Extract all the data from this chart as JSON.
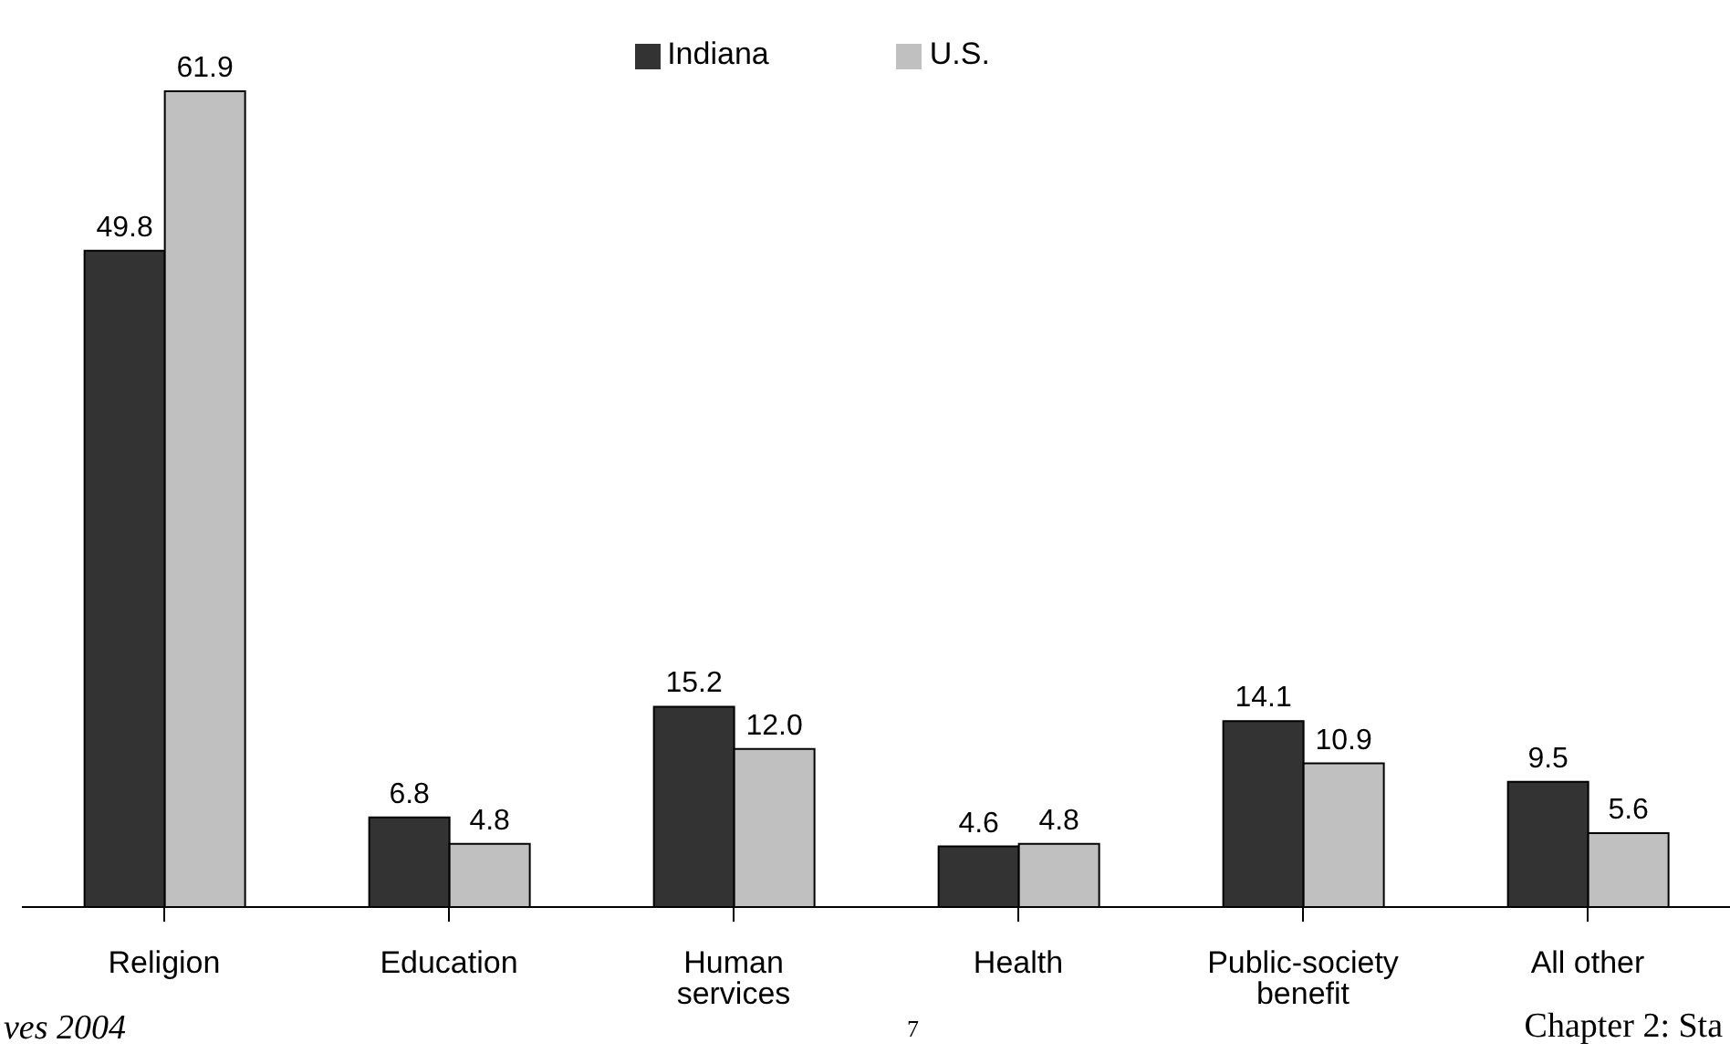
{
  "chart_data": {
    "type": "bar",
    "categories": [
      "Religion",
      "Education",
      "Human services",
      "Health",
      "Public-society benefit",
      "All other"
    ],
    "series": [
      {
        "name": "Indiana",
        "color": "#333333",
        "values": [
          49.8,
          6.8,
          15.2,
          4.6,
          14.1,
          9.5
        ],
        "value_labels": [
          "49.8",
          "6.8",
          "15.2",
          "4.6",
          "14.1",
          "9.5"
        ]
      },
      {
        "name": "U.S.",
        "color": "#c0c0c0",
        "values": [
          61.9,
          4.8,
          12.0,
          4.8,
          10.9,
          5.6
        ],
        "value_labels": [
          "61.9",
          "4.8",
          "12.0",
          "4.8",
          "10.9",
          "5.6"
        ]
      }
    ],
    "legend": "top",
    "annotations": [
      "ves 2004",
      "7",
      "Chapter 2: Sta"
    ]
  }
}
